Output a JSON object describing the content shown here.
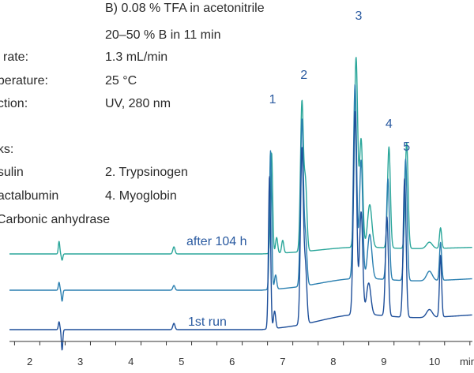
{
  "conditions": {
    "mobile_phase_b": "B) 0.08 % TFA in acetonitrile",
    "gradient": "20–50 % B in 11 min",
    "flow_rate_label": "w rate:",
    "flow_rate_value": "1.3 mL/min",
    "temperature_label": "nperature:",
    "temperature_value": "25 °C",
    "detection_label": "ection:",
    "detection_value": "UV, 280 nm",
    "peaks_label": "aks:",
    "peak_1": "nsulin",
    "peak_2": "2. Trypsinogen",
    "peak_3": "Lactalbumin",
    "peak_4": "4. Myoglobin",
    "peak_5": "Carbonic anhydrase"
  },
  "colors": {
    "trace_top": "#2aa69a",
    "trace_mid": "#2a7fb0",
    "trace_bottom": "#1e4f9a",
    "label_text": "#2a5aa0",
    "axis": "#333333"
  },
  "chart_data": {
    "type": "line",
    "xlabel": "min",
    "xlim": [
      1.6,
      10.75
    ],
    "xticks": [
      2,
      3,
      4,
      5,
      6,
      7,
      8,
      9,
      10
    ],
    "peak_labels": [
      {
        "label": "1",
        "x": 6.8
      },
      {
        "label": "2",
        "x": 7.42
      },
      {
        "label": "3",
        "x": 8.5
      },
      {
        "label": "4",
        "x": 9.1
      },
      {
        "label": "5",
        "x": 9.45
      }
    ],
    "series": [
      {
        "name": "after 104 h",
        "peaks_x": [
          6.8,
          7.42,
          8.5,
          9.1,
          9.45,
          10.12
        ]
      },
      {
        "name": "",
        "peaks_x": [
          6.78,
          7.4,
          8.48,
          9.08,
          9.43,
          10.12
        ]
      },
      {
        "name": "1st run",
        "peaks_x": [
          6.76,
          7.38,
          8.46,
          9.06,
          9.41,
          10.12
        ]
      }
    ],
    "grid": false
  }
}
